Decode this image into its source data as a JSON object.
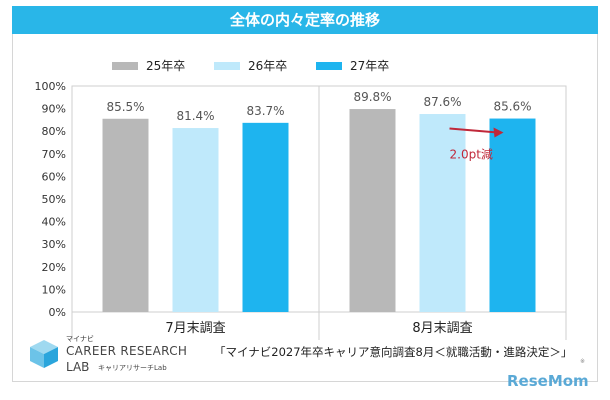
{
  "title": "全体の内々定率の推移",
  "chart_data": {
    "type": "bar",
    "categories": [
      "7月末調査",
      "8月末調査"
    ],
    "series": [
      {
        "name": "25年卒",
        "color": "#b8b8b8",
        "values": [
          85.5,
          89.8
        ],
        "labels": [
          "85.5%",
          "89.8%"
        ]
      },
      {
        "name": "26年卒",
        "color": "#bfe9fb",
        "values": [
          81.4,
          87.6
        ],
        "labels": [
          "81.4%",
          "87.6%"
        ]
      },
      {
        "name": "27年卒",
        "color": "#1eb4ef",
        "values": [
          83.7,
          85.6
        ],
        "labels": [
          "83.7%",
          "85.6%"
        ]
      }
    ],
    "ylim": [
      0,
      100
    ],
    "yticks": [
      "0%",
      "10%",
      "20%",
      "30%",
      "40%",
      "50%",
      "60%",
      "70%",
      "80%",
      "90%",
      "100%"
    ],
    "legend_position": "top",
    "grid": false,
    "annotation": {
      "text": "2.0pt減",
      "color": "#c0283a"
    }
  },
  "logo": {
    "brand": "マイナビ",
    "line1": "CAREER RESEARCH",
    "line2": "LAB",
    "kana": "キャリアリサーチLab"
  },
  "source": "「マイナビ2027年卒キャリア意向調査8月＜就職活動・進路決定＞」",
  "watermark": "ReseMom",
  "corner_note": "※"
}
